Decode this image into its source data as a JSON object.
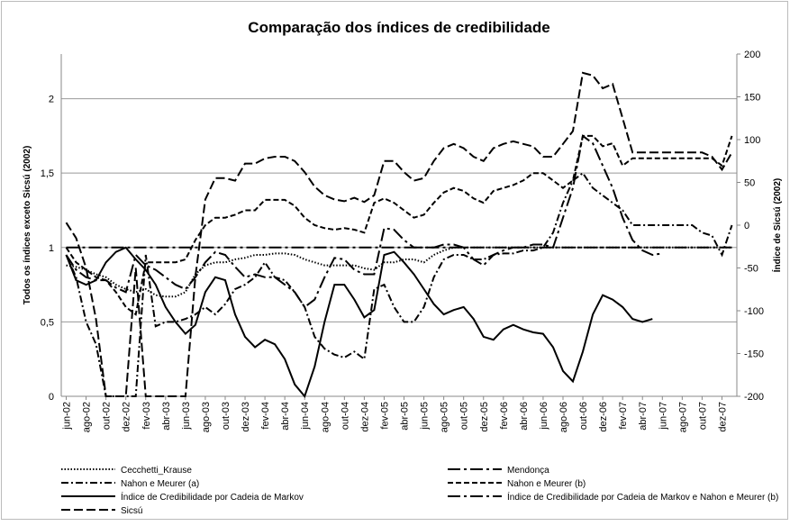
{
  "chart_data": {
    "type": "line",
    "title": "Comparação dos índices de credibilidade",
    "ylabel": "Todos os índices exceto Sicsú (2002)",
    "y2label": "Índice de Sicsú (2002)",
    "categories": [
      "jun-02",
      null,
      "ago-02",
      null,
      "out-02",
      null,
      "dez-02",
      null,
      "fev-03",
      null,
      "abr-03",
      null,
      "jun-03",
      null,
      "ago-03",
      null,
      "out-03",
      null,
      "dez-03",
      null,
      "fev-04",
      null,
      "abr-04",
      null,
      "jun-04",
      null,
      "ago-04",
      null,
      "out-04",
      null,
      "dez-04",
      null,
      "fev-05",
      null,
      "abr-05",
      null,
      "jun-05",
      null,
      "ago-05",
      null,
      "out-05",
      null,
      "dez-05",
      null,
      "fev-06",
      null,
      "abr-06",
      null,
      "jun-06",
      null,
      "ago-06",
      null,
      "out-06",
      null,
      "dez-06",
      null,
      "fev-07",
      null,
      "abr-07",
      null,
      "jun-07",
      null,
      "ago-07",
      null,
      "out-07",
      null,
      "dez-07",
      null
    ],
    "ylim": [
      0,
      2.3
    ],
    "yticks": [
      0,
      {
        "value": 0.5,
        "label": "0,5"
      },
      1,
      {
        "value": 1.5,
        "label": "1,5"
      },
      2
    ],
    "y2lim": [
      -200,
      200
    ],
    "y2ticks": [
      -200,
      -150,
      -100,
      -50,
      0,
      50,
      100,
      150,
      200
    ],
    "grid": true,
    "legend": "bottom",
    "series": [
      {
        "name": "Cecchetti_Krause",
        "color": "#000000",
        "dash": "dotted",
        "values": [
          0.88,
          0.87,
          0.85,
          0.82,
          0.8,
          0.75,
          0.72,
          0.7,
          0.72,
          0.68,
          0.67,
          0.67,
          0.7,
          0.82,
          0.88,
          0.9,
          0.9,
          0.92,
          0.93,
          0.95,
          0.95,
          0.96,
          0.96,
          0.95,
          0.92,
          0.9,
          0.88,
          0.88,
          0.88,
          0.88,
          0.86,
          0.85,
          0.9,
          0.9,
          0.92,
          0.92,
          0.9,
          0.95,
          0.98,
          1,
          1,
          1,
          1,
          1,
          1,
          1,
          1,
          1,
          1,
          1,
          1,
          1,
          1,
          1,
          1,
          1,
          1,
          1,
          1,
          1,
          1,
          1,
          1,
          1,
          1,
          1,
          1,
          1
        ]
      },
      {
        "name": "Mendonça",
        "color": "#000000",
        "dash": "longdashdot",
        "values": [
          1,
          1,
          1,
          1,
          1,
          1,
          1,
          1,
          1,
          1,
          1,
          1,
          1,
          1,
          1,
          1,
          1,
          1,
          1,
          1,
          1,
          1,
          1,
          1,
          1,
          1,
          1,
          1,
          1,
          1,
          1,
          1,
          1,
          1,
          1,
          1,
          1,
          1,
          1,
          1,
          1,
          1,
          1,
          1,
          1,
          1,
          1,
          1,
          1,
          1,
          1,
          1,
          1,
          1,
          1,
          1,
          1,
          1,
          1,
          1,
          1,
          1,
          1,
          1,
          1,
          1,
          1,
          1
        ]
      },
      {
        "name": "Nahon e Meurer (a)",
        "color": "#000000",
        "dash": "dashdot",
        "values": [
          0.95,
          0.8,
          0.5,
          0.35,
          0,
          0,
          0,
          0,
          0.95,
          0.47,
          0.5,
          0.5,
          0.52,
          0.55,
          0.6,
          0.55,
          0.62,
          0.72,
          0.75,
          0.8,
          0.9,
          0.8,
          0.78,
          0.7,
          0.6,
          0.4,
          0.32,
          0.28,
          0.26,
          0.3,
          0.25,
          0.72,
          0.75,
          0.6,
          0.5,
          0.5,
          0.6,
          0.8,
          0.92,
          0.95,
          0.95,
          0.92,
          0.92,
          0.95,
          0.96,
          0.96,
          0.98,
          0.98,
          1,
          1.1,
          1.3,
          1.45,
          1.5,
          1.4,
          1.35,
          1.3,
          1.25,
          1.15,
          1.15,
          1.15,
          1.15,
          1.15,
          1.15,
          1.15,
          1.1,
          1.08,
          0.95,
          1.15
        ]
      },
      {
        "name": "Nahon e Meurer (b)",
        "color": "#000000",
        "dash": "dashed",
        "values": [
          1,
          0.9,
          0.85,
          0.8,
          0.78,
          0.7,
          0.6,
          0.55,
          0.9,
          0.9,
          0.9,
          0.9,
          0.92,
          1.05,
          1.15,
          1.2,
          1.2,
          1.22,
          1.25,
          1.25,
          1.32,
          1.32,
          1.32,
          1.28,
          1.2,
          1.15,
          1.13,
          1.12,
          1.13,
          1.12,
          1.1,
          1.3,
          1.33,
          1.3,
          1.25,
          1.2,
          1.22,
          1.3,
          1.37,
          1.4,
          1.38,
          1.33,
          1.3,
          1.38,
          1.4,
          1.42,
          1.45,
          1.5,
          1.5,
          1.45,
          1.4,
          1.45,
          1.75,
          1.75,
          1.68,
          1.7,
          1.55,
          1.6,
          1.6,
          1.6,
          1.6,
          1.6,
          1.6,
          1.6,
          1.6,
          1.6,
          1.55,
          1.75
        ]
      },
      {
        "name": "Índice de Credibilidade por Cadeia de Markov",
        "color": "#000000",
        "dash": "solid",
        "values": [
          0.95,
          0.78,
          0.75,
          0.78,
          0.9,
          0.97,
          1,
          0.92,
          0.85,
          0.75,
          0.6,
          0.5,
          0.42,
          0.48,
          0.7,
          0.8,
          0.78,
          0.55,
          0.4,
          0.33,
          0.38,
          0.35,
          0.25,
          0.08,
          0,
          0.2,
          0.5,
          0.75,
          0.75,
          0.65,
          0.53,
          0.58,
          0.95,
          0.97,
          0.9,
          0.82,
          0.72,
          0.62,
          0.55,
          0.58,
          0.6,
          0.52,
          0.4,
          0.38,
          0.45,
          0.48,
          0.45,
          0.43,
          0.42,
          0.33,
          0.17,
          0.1,
          0.3,
          0.55,
          0.68,
          0.65,
          0.6,
          0.52,
          0.5,
          0.52,
          null,
          null,
          null,
          null,
          null,
          null,
          null,
          null
        ]
      },
      {
        "name": "Índice de Credibilidade por Cadeia de Markov e Nahon e Meurer (b)",
        "color": "#000000",
        "dash": "longdashdot",
        "values": [
          0.95,
          0.85,
          0.8,
          0.78,
          0.78,
          0.73,
          0.7,
          0.95,
          0.88,
          0.85,
          0.8,
          0.75,
          0.72,
          0.8,
          0.9,
          0.97,
          0.95,
          0.87,
          0.8,
          0.82,
          0.8,
          0.8,
          0.75,
          0.7,
          0.6,
          0.65,
          0.8,
          0.93,
          0.92,
          0.85,
          0.82,
          0.82,
          1.13,
          1.12,
          1.05,
          1,
          1,
          1,
          1.02,
          1.02,
          1,
          0.92,
          0.88,
          0.95,
          0.98,
          1,
          1,
          1.02,
          1.02,
          1,
          1.2,
          1.4,
          1.75,
          1.7,
          1.55,
          1.4,
          1.2,
          1.05,
          0.98,
          0.95,
          0.96,
          null,
          null,
          null,
          null,
          null,
          null,
          null
        ]
      },
      {
        "name": "Sicsú",
        "color": "#000000",
        "dash": "longdash",
        "axis": "y2",
        "values": [
          3,
          -15,
          -50,
          -110,
          -200,
          -200,
          -200,
          -50,
          -200,
          -200,
          -200,
          -200,
          -200,
          -60,
          30,
          55,
          55,
          52,
          72,
          72,
          78,
          80,
          80,
          75,
          62,
          45,
          35,
          30,
          28,
          32,
          27,
          35,
          75,
          75,
          62,
          52,
          55,
          75,
          90,
          95,
          90,
          80,
          75,
          90,
          95,
          98,
          95,
          92,
          80,
          80,
          95,
          110,
          178,
          175,
          160,
          165,
          125,
          85,
          85,
          85,
          85,
          85,
          85,
          85,
          85,
          80,
          65,
          85
        ]
      }
    ]
  }
}
